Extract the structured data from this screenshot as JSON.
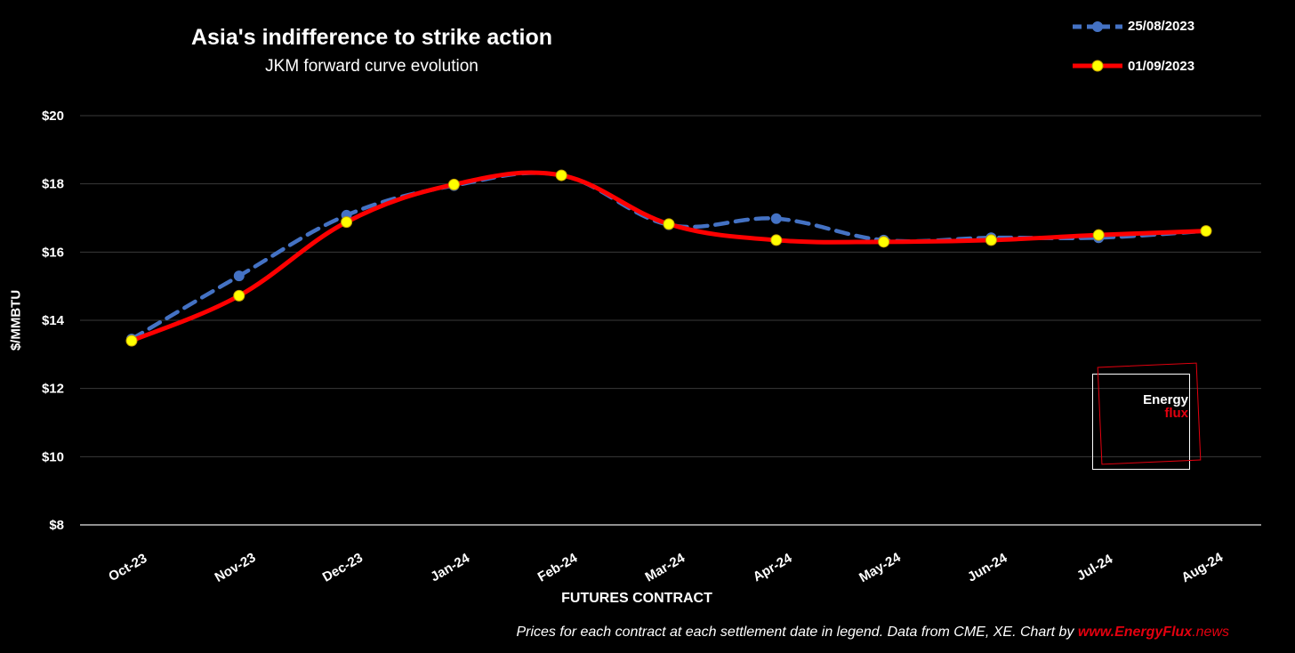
{
  "chart_data": {
    "type": "line",
    "title": "Asia's indifference to strike action",
    "subtitle": "JKM forward curve evolution",
    "xlabel": "FUTURES CONTRACT",
    "ylabel": "$/MMBTU",
    "categories": [
      "Oct-23",
      "Nov-23",
      "Dec-23",
      "Jan-24",
      "Feb-24",
      "Mar-24",
      "Apr-24",
      "May-24",
      "Jun-24",
      "Jul-24",
      "Aug-24"
    ],
    "yticks": [
      "$8",
      "$10",
      "$12",
      "$14",
      "$16",
      "$18",
      "$20"
    ],
    "ylim": [
      8,
      20
    ],
    "grid": true,
    "legend_position": "top-right",
    "series": [
      {
        "name": "25/08/2023",
        "color": "#4472c4",
        "style": "dashed",
        "marker": "circle",
        "values": [
          13.45,
          15.3,
          17.08,
          17.95,
          18.25,
          16.8,
          16.98,
          16.35,
          16.42,
          16.42,
          16.62
        ]
      },
      {
        "name": "01/09/2023",
        "color": "#ff0000",
        "marker_fill": "#ffff00",
        "style": "solid",
        "marker": "circle",
        "values": [
          13.4,
          14.72,
          16.88,
          17.98,
          18.25,
          16.82,
          16.35,
          16.3,
          16.35,
          16.5,
          16.62
        ]
      }
    ]
  },
  "footer": {
    "text": "Prices for each contract at each settlement date in legend. Data from CME, XE. Chart by ",
    "brand_main": "www.EnergyFlux",
    "brand_suffix": ".news"
  },
  "logo": {
    "word1": "Energy",
    "word2": "flux"
  }
}
